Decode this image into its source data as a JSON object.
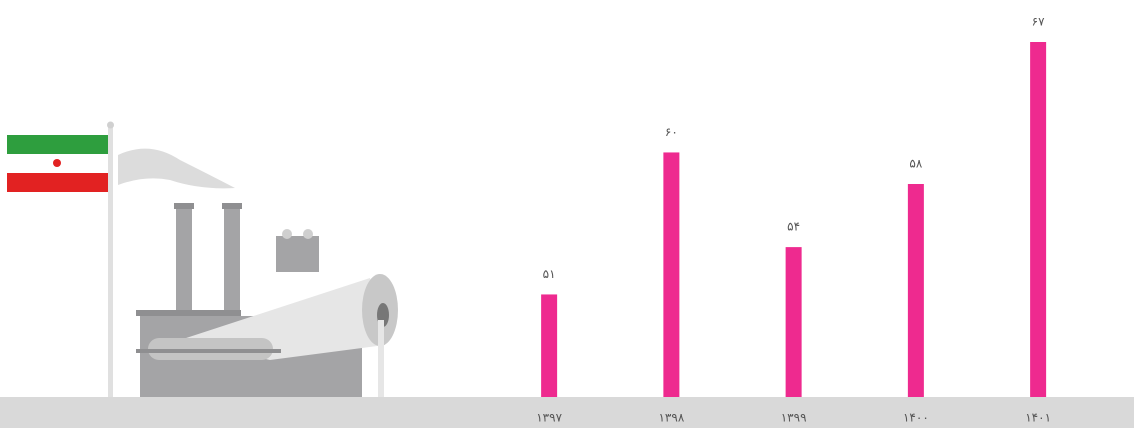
{
  "chart_data": {
    "type": "bar",
    "categories": [
      "۱۳۹۷",
      "۱۳۹۸",
      "۱۳۹۹",
      "۱۴۰۰",
      "۱۴۰۱"
    ],
    "values": [
      51,
      60,
      54,
      58,
      67
    ],
    "value_labels": [
      "۵۱",
      "۶۰",
      "۵۴",
      "۵۸",
      "۶۷"
    ],
    "color": "#ee2a8f",
    "ylim": [
      44.5,
      67
    ]
  }
}
